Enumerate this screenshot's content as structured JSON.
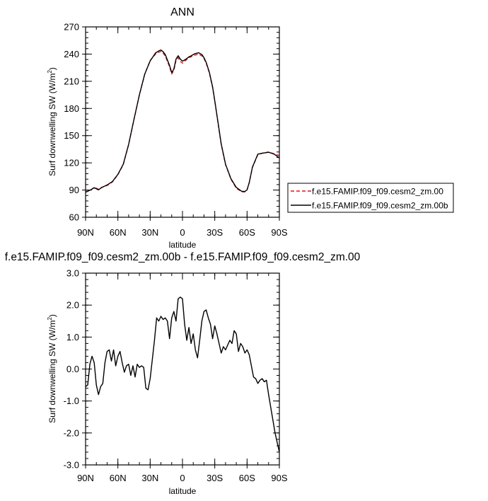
{
  "chart_data": [
    {
      "type": "line",
      "title": "ANN",
      "xlabel": "latitude",
      "ylabel": "Surf downwelling SW (W/m",
      "ylabel_sup": "2",
      "ylabel_end": ")",
      "xlim": [
        90,
        -90
      ],
      "ylim": [
        60,
        270
      ],
      "xticks": [
        90,
        60,
        30,
        0,
        -30,
        -60,
        -90
      ],
      "xtick_labels": [
        "90N",
        "60N",
        "30N",
        "0",
        "30S",
        "60S",
        "90S"
      ],
      "yticks": [
        60,
        90,
        120,
        150,
        180,
        210,
        240,
        270
      ],
      "ytick_labels": [
        "60",
        "90",
        "120",
        "150",
        "180",
        "210",
        "240",
        "270"
      ],
      "legend_position": "right",
      "series": [
        {
          "name": "f.e15.FAMIP.f09_f09.cesm2_zm.00",
          "color": "#e0141e",
          "dash": true,
          "x": [
            90,
            85,
            82,
            78,
            75,
            70,
            65,
            60,
            55,
            50,
            45,
            40,
            35,
            30,
            25,
            22,
            20,
            18,
            16,
            14,
            12,
            10,
            8,
            6,
            4,
            2,
            0,
            -2,
            -4,
            -6,
            -8,
            -10,
            -12,
            -15,
            -18,
            -20,
            -22,
            -25,
            -28,
            -30,
            -33,
            -36,
            -40,
            -45,
            -50,
            -55,
            -58,
            -60,
            -62,
            -65,
            -70,
            -75,
            -80,
            -85,
            -90
          ],
          "y": [
            88,
            90,
            93,
            91,
            93,
            95,
            99,
            107,
            118,
            140,
            168,
            195,
            218,
            233,
            240,
            242,
            243,
            241,
            238,
            232,
            226,
            218,
            222,
            233,
            236,
            232,
            230,
            232,
            234,
            236,
            237,
            238,
            239,
            240,
            238,
            235,
            230,
            219,
            203,
            188,
            164,
            140,
            118,
            102,
            92,
            88,
            88,
            90,
            98,
            115,
            129,
            131,
            132,
            130,
            128
          ]
        },
        {
          "name": "f.e15.FAMIP.f09_f09.cesm2_zm.00b",
          "color": "#000000",
          "dash": false,
          "x": [
            90,
            85,
            82,
            78,
            75,
            70,
            65,
            60,
            55,
            50,
            45,
            40,
            35,
            30,
            25,
            22,
            20,
            18,
            16,
            14,
            12,
            10,
            8,
            6,
            4,
            2,
            0,
            -2,
            -4,
            -6,
            -8,
            -10,
            -12,
            -15,
            -18,
            -20,
            -22,
            -25,
            -28,
            -30,
            -33,
            -36,
            -40,
            -45,
            -50,
            -55,
            -58,
            -60,
            -62,
            -65,
            -70,
            -75,
            -80,
            -85,
            -90
          ],
          "y": [
            87.5,
            90.4,
            92.6,
            90.2,
            92.8,
            95.6,
            99.5,
            107.3,
            118.5,
            140.5,
            168.2,
            195.1,
            218.1,
            232.4,
            241.3,
            243.5,
            244.5,
            242.6,
            239.5,
            233.5,
            227.5,
            219.5,
            223.5,
            234.5,
            238.2,
            234.5,
            232.2,
            233.5,
            235.1,
            237.0,
            238.0,
            239.5,
            240.6,
            241.5,
            239.5,
            236.0,
            230.9,
            219.8,
            203.8,
            188.6,
            164.8,
            140.9,
            118.5,
            102.6,
            92.9,
            88.6,
            88.4,
            90.3,
            98.2,
            115.3,
            129.6,
            130.8,
            131.7,
            129.7,
            125.4
          ]
        }
      ]
    },
    {
      "type": "line",
      "title": "f.e15.FAMIP.f09_f09.cesm2_zm.00b - f.e15.FAMIP.f09_f09.cesm2_zm.00",
      "xlabel": "latitude",
      "ylabel": "Surf downwelling SW (W/m",
      "ylabel_sup": "2",
      "ylabel_end": ")",
      "xlim": [
        90,
        -90
      ],
      "ylim": [
        -3.0,
        3.0
      ],
      "xticks": [
        90,
        60,
        30,
        0,
        -30,
        -60,
        -90
      ],
      "xtick_labels": [
        "90N",
        "60N",
        "30N",
        "0",
        "30S",
        "60S",
        "90S"
      ],
      "yticks": [
        -3,
        -2,
        -1,
        0,
        1,
        2,
        3
      ],
      "ytick_labels": [
        "-3.0",
        "-2.0",
        "-1.0",
        "0.0",
        "1.0",
        "2.0",
        "3.0"
      ],
      "series": [
        {
          "color": "#000000",
          "x": [
            90,
            88,
            86,
            84,
            82,
            80,
            78,
            76,
            74,
            72,
            70,
            68,
            66,
            64,
            62,
            60,
            58,
            56,
            54,
            52,
            50,
            48,
            46,
            44,
            42,
            40,
            38,
            36,
            34,
            32,
            30,
            28,
            26,
            24,
            22,
            20,
            18,
            16,
            14,
            12,
            10,
            8,
            6,
            4,
            2,
            0,
            -2,
            -4,
            -6,
            -8,
            -10,
            -12,
            -14,
            -16,
            -18,
            -20,
            -22,
            -24,
            -26,
            -28,
            -30,
            -32,
            -34,
            -36,
            -38,
            -40,
            -42,
            -44,
            -46,
            -48,
            -50,
            -52,
            -54,
            -56,
            -58,
            -60,
            -62,
            -64,
            -66,
            -68,
            -70,
            -72,
            -74,
            -76,
            -78,
            -80,
            -82,
            -84,
            -86,
            -88,
            -90
          ],
          "y": [
            -0.55,
            -0.5,
            0.15,
            0.4,
            0.2,
            -0.5,
            -0.8,
            -0.55,
            -0.45,
            0.2,
            0.55,
            0.6,
            0.25,
            0.6,
            0.1,
            0.4,
            0.55,
            0.2,
            -0.1,
            0.1,
            0.15,
            -0.2,
            0.1,
            -0.25,
            0.15,
            0.05,
            0.1,
            0.05,
            -0.6,
            -0.65,
            -0.3,
            0.3,
            0.9,
            1.6,
            1.5,
            1.65,
            1.55,
            1.6,
            1.5,
            0.95,
            1.6,
            1.8,
            1.5,
            2.2,
            2.25,
            2.2,
            1.4,
            0.9,
            1.3,
            0.8,
            1.1,
            0.6,
            0.35,
            0.9,
            1.5,
            1.8,
            1.85,
            1.6,
            1.4,
            0.95,
            1.35,
            1.1,
            0.8,
            0.5,
            0.7,
            0.6,
            0.75,
            0.9,
            0.8,
            1.2,
            1.1,
            0.55,
            0.8,
            0.7,
            0.5,
            0.6,
            0.45,
            0.1,
            -0.25,
            -0.3,
            -0.45,
            -0.35,
            -0.3,
            -0.4,
            -0.35,
            -0.8,
            -1.2,
            -1.6,
            -2.0,
            -2.3,
            -2.6
          ]
        }
      ]
    }
  ]
}
